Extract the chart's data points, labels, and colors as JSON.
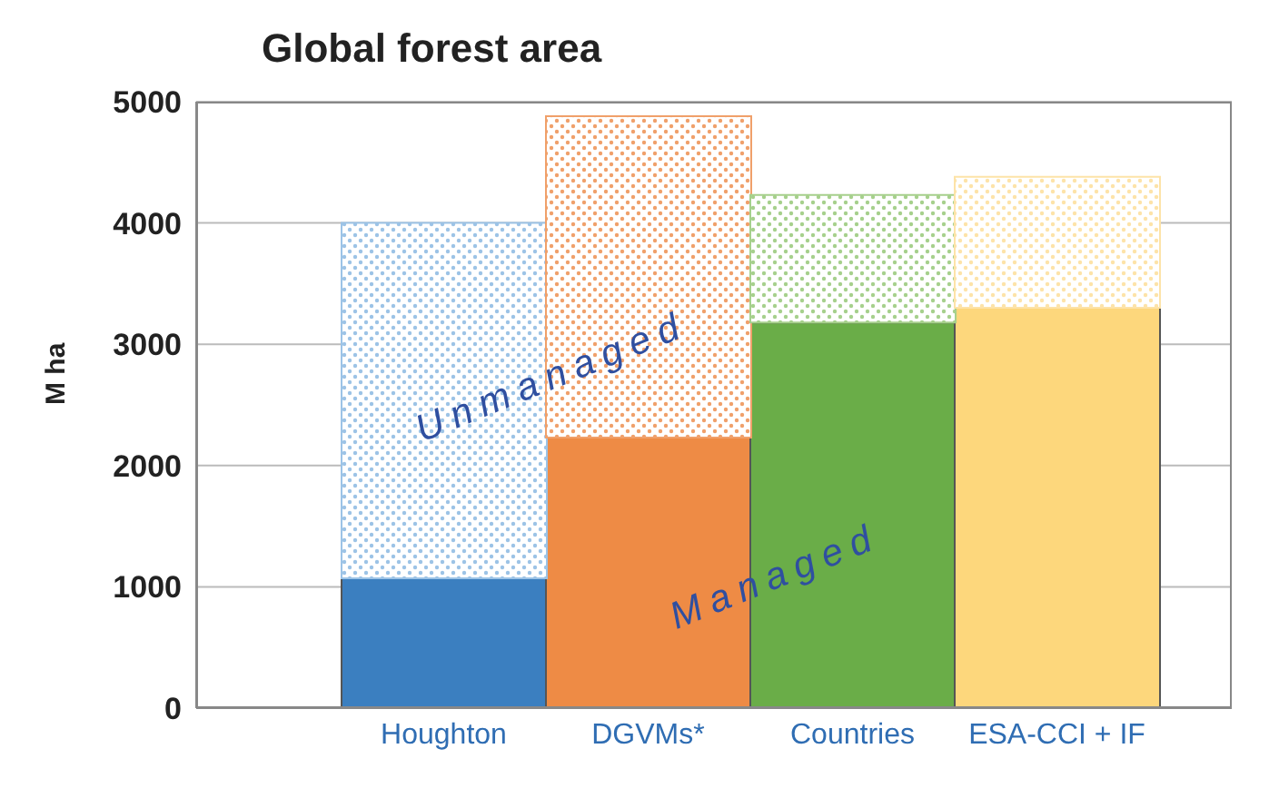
{
  "chart_data": {
    "type": "bar",
    "title": "Global forest area",
    "ylabel": "M ha",
    "categories": [
      "Houghton",
      "DGVMs*",
      "Countries",
      "ESA-CCI + IF"
    ],
    "stacked": true,
    "series": [
      {
        "name": "Managed",
        "colors": [
          "#3b7fc0",
          "#ee8b45",
          "#6aad48",
          "#fdd77c"
        ],
        "values": [
          1070,
          2230,
          3180,
          3300
        ]
      },
      {
        "name": "Unmanaged",
        "colors": [
          "#9cc3e6",
          "#f0a06a",
          "#a6d08c",
          "#fde3a8"
        ],
        "values": [
          2930,
          2650,
          1050,
          1080
        ]
      }
    ],
    "ylim": [
      0,
      5000
    ],
    "yticks": [
      0,
      1000,
      2000,
      3000,
      4000,
      5000
    ],
    "grid": "y",
    "legend": false
  }
}
